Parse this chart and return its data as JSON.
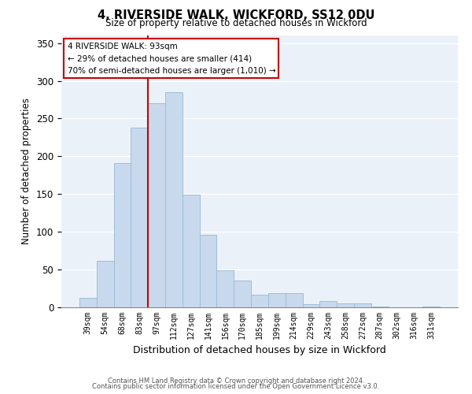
{
  "title": "4, RIVERSIDE WALK, WICKFORD, SS12 0DU",
  "subtitle": "Size of property relative to detached houses in Wickford",
  "xlabel": "Distribution of detached houses by size in Wickford",
  "ylabel": "Number of detached properties",
  "bar_labels": [
    "39sqm",
    "54sqm",
    "68sqm",
    "83sqm",
    "97sqm",
    "112sqm",
    "127sqm",
    "141sqm",
    "156sqm",
    "170sqm",
    "185sqm",
    "199sqm",
    "214sqm",
    "229sqm",
    "243sqm",
    "258sqm",
    "272sqm",
    "287sqm",
    "302sqm",
    "316sqm",
    "331sqm"
  ],
  "bar_values": [
    13,
    62,
    191,
    238,
    270,
    285,
    149,
    96,
    49,
    35,
    17,
    19,
    19,
    4,
    8,
    5,
    5,
    1,
    0,
    0,
    1
  ],
  "bar_color": "#c8d9ed",
  "bar_edge_color": "#a0bdd8",
  "vline_color": "#cc0000",
  "ylim": [
    0,
    360
  ],
  "yticks": [
    0,
    50,
    100,
    150,
    200,
    250,
    300,
    350
  ],
  "annotation_title": "4 RIVERSIDE WALK: 93sqm",
  "annotation_line1": "← 29% of detached houses are smaller (414)",
  "annotation_line2": "70% of semi-detached houses are larger (1,010) →",
  "annotation_box_color": "#ffffff",
  "annotation_box_edge": "#cc0000",
  "footer1": "Contains HM Land Registry data © Crown copyright and database right 2024.",
  "footer2": "Contains public sector information licensed under the Open Government Licence v3.0.",
  "bg_color": "#eaf1f8"
}
